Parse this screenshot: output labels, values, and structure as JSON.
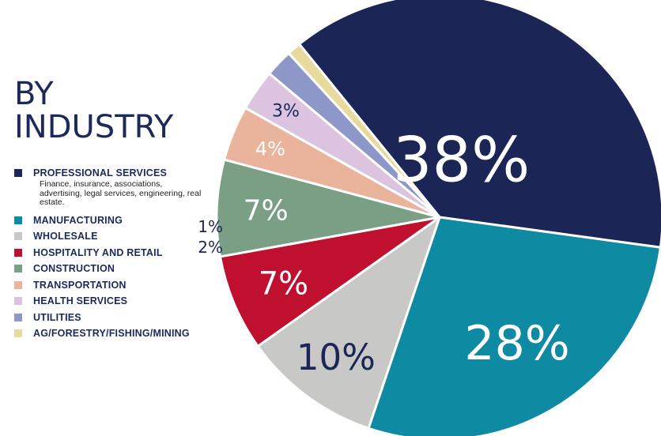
{
  "title": {
    "line1": "BY",
    "line2": "INDUSTRY"
  },
  "legend": [
    {
      "label": "PROFESSIONAL SERVICES",
      "desc": "Finance, insurance, associations, advertising, legal services, engineering, real estate.",
      "color": "#1b2656"
    },
    {
      "label": "MANUFACTURING",
      "color": "#0f8aa3"
    },
    {
      "label": "WHOLESALE",
      "color": "#c8c8c7"
    },
    {
      "label": "HOSPITALITY AND RETAIL",
      "color": "#c0102f"
    },
    {
      "label": "CONSTRUCTION",
      "color": "#7b9f85"
    },
    {
      "label": "TRANSPORTATION",
      "color": "#eab39c"
    },
    {
      "label": "HEALTH SERVICES",
      "color": "#dcc4e0"
    },
    {
      "label": "UTILITIES",
      "color": "#8e98c8"
    },
    {
      "label": "AG/FORESTRY/FISHING/MINING",
      "color": "#e8da9c"
    }
  ],
  "chart_data": {
    "type": "pie",
    "categories": [
      "PROFESSIONAL SERVICES",
      "MANUFACTURING",
      "WHOLESALE",
      "HOSPITALITY AND RETAIL",
      "CONSTRUCTION",
      "TRANSPORTATION",
      "HEALTH SERVICES",
      "UTILITIES",
      "AG/FORESTRY/FISHING/MINING"
    ],
    "values": [
      38,
      28,
      10,
      7,
      7,
      4,
      3,
      2,
      1
    ],
    "labels": [
      "38%",
      "28%",
      "10%",
      "7%",
      "7%",
      "4%",
      "3%",
      "2%",
      "1%"
    ],
    "colors": [
      "#1b2656",
      "#0f8aa3",
      "#c8c8c7",
      "#c0102f",
      "#7b9f85",
      "#eab39c",
      "#dcc4e0",
      "#8e98c8",
      "#e8da9c"
    ],
    "label_colors": [
      "#ffffff",
      "#ffffff",
      "#1b2656",
      "#ffffff",
      "#ffffff",
      "#ffffff",
      "#1b2656",
      "#1b2656",
      "#1b2656"
    ],
    "legend_placement": "left"
  }
}
